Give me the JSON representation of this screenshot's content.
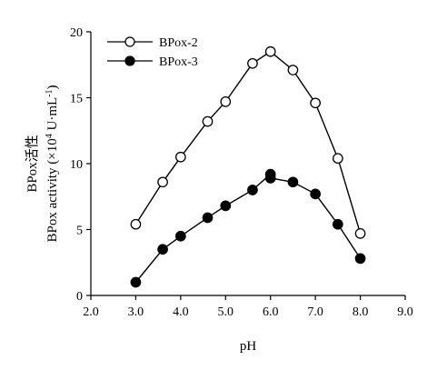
{
  "chart_data": {
    "type": "line",
    "xlabel": "pH",
    "ylabel_line1": "BPox活性",
    "ylabel_line2": "BPox activity (×10",
    "ylabel_exp": "4",
    "ylabel_unit": " U·mL",
    "ylabel_unit_exp": "-1",
    "ylabel_close": ")",
    "xlim": [
      2.0,
      9.0
    ],
    "ylim": [
      0,
      20
    ],
    "xticks": [
      "2.0",
      "3.0",
      "4.0",
      "5.0",
      "6.0",
      "7.0",
      "8.0",
      "9.0"
    ],
    "yticks": [
      "0",
      "5",
      "10",
      "15",
      "20"
    ],
    "grid": false,
    "legend_position": "top-left",
    "series": [
      {
        "name": "BPox-2",
        "marker": "open-circle",
        "x": [
          3.0,
          3.6,
          4.0,
          4.6,
          5.0,
          5.6,
          6.0,
          6.5,
          7.0,
          7.5,
          8.0
        ],
        "y": [
          5.4,
          8.6,
          10.5,
          13.2,
          14.7,
          17.6,
          18.5,
          17.1,
          14.6,
          10.4,
          4.7
        ]
      },
      {
        "name": "BPox-3",
        "marker": "filled-circle",
        "x": [
          3.0,
          3.6,
          4.0,
          4.6,
          5.0,
          5.6,
          6.0,
          6.0,
          6.5,
          7.0,
          7.5,
          8.0
        ],
        "y": [
          1.0,
          3.5,
          4.5,
          5.9,
          6.8,
          8.0,
          9.2,
          8.9,
          8.6,
          7.7,
          5.4,
          2.8
        ]
      }
    ]
  }
}
